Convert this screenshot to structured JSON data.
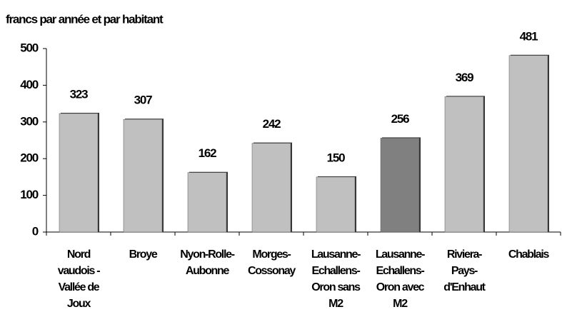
{
  "chart_data": {
    "type": "bar",
    "y_axis_label": "francs par année et par habitant",
    "categories": [
      "Nord vaudois - Vallée de Joux",
      "Broye",
      "Nyon-Rolle-Aubonne",
      "Morges-Cossonay",
      "Lausanne-Echallens-Oron sans M2",
      "Lausanne-Echallens-Oron avec M2",
      "Riviera-Pays-d'Enhaut",
      "Chablais"
    ],
    "values": [
      323,
      307,
      162,
      242,
      150,
      256,
      369,
      481
    ],
    "colors": [
      "#c0c0c0",
      "#c0c0c0",
      "#c0c0c0",
      "#c0c0c0",
      "#c0c0c0",
      "#808080",
      "#c0c0c0",
      "#c0c0c0"
    ],
    "ylim": [
      0,
      500
    ],
    "yticks": [
      0,
      100,
      200,
      300,
      400,
      500
    ],
    "grid": false
  }
}
